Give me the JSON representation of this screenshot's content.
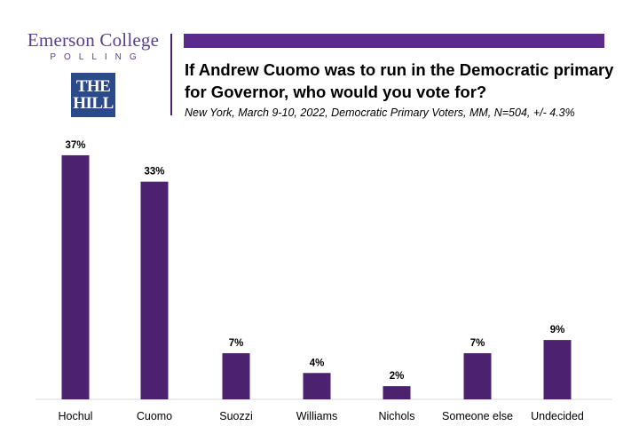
{
  "header": {
    "brand_name": "Emerson College",
    "brand_sub": "POLLING",
    "partner_logo_line1": "THE",
    "partner_logo_line2": "HILL",
    "bar_color": "#5c2a8a"
  },
  "chart_data": {
    "type": "bar",
    "title": "If Andrew Cuomo was to run in the Democratic primary for Governor, who would you vote for?",
    "subtitle": "New York, March 9-10, 2022, Democratic Primary Voters, MM, N=504, +/- 4.3%",
    "categories": [
      "Hochul",
      "Cuomo",
      "Suozzi",
      "Williams",
      "Nichols",
      "Someone else",
      "Undecided"
    ],
    "values": [
      37,
      33,
      7,
      4,
      2,
      7,
      9
    ],
    "data_labels": [
      "37%",
      "33%",
      "7%",
      "4%",
      "2%",
      "7%",
      "9%"
    ],
    "ylim": [
      0,
      40
    ],
    "grid": false,
    "legend": "none",
    "bar_color": "#4b2170"
  }
}
